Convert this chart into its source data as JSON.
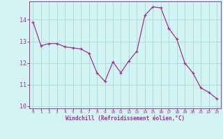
{
  "x": [
    0,
    1,
    2,
    3,
    4,
    5,
    6,
    7,
    8,
    9,
    10,
    11,
    12,
    13,
    14,
    15,
    16,
    17,
    18,
    19,
    20,
    21,
    22,
    23
  ],
  "y": [
    13.9,
    12.8,
    12.9,
    12.9,
    12.75,
    12.7,
    12.65,
    12.45,
    11.55,
    11.15,
    12.05,
    11.55,
    12.1,
    12.55,
    14.2,
    14.6,
    14.55,
    13.6,
    13.1,
    12.0,
    11.55,
    10.85,
    10.65,
    10.35
  ],
  "line_color": "#993399",
  "bg_color": "#d4f4f4",
  "grid_color": "#aadddd",
  "xlabel": "Windchill (Refroidissement éolien,°C)",
  "xlabel_color": "#993399",
  "tick_color": "#993399",
  "spine_color": "#993399",
  "ylim": [
    9.9,
    14.85
  ],
  "xlim": [
    -0.5,
    23.5
  ],
  "yticks": [
    10,
    11,
    12,
    13,
    14
  ],
  "xticks": [
    0,
    1,
    2,
    3,
    4,
    5,
    6,
    7,
    8,
    9,
    10,
    11,
    12,
    13,
    14,
    15,
    16,
    17,
    18,
    19,
    20,
    21,
    22,
    23
  ]
}
